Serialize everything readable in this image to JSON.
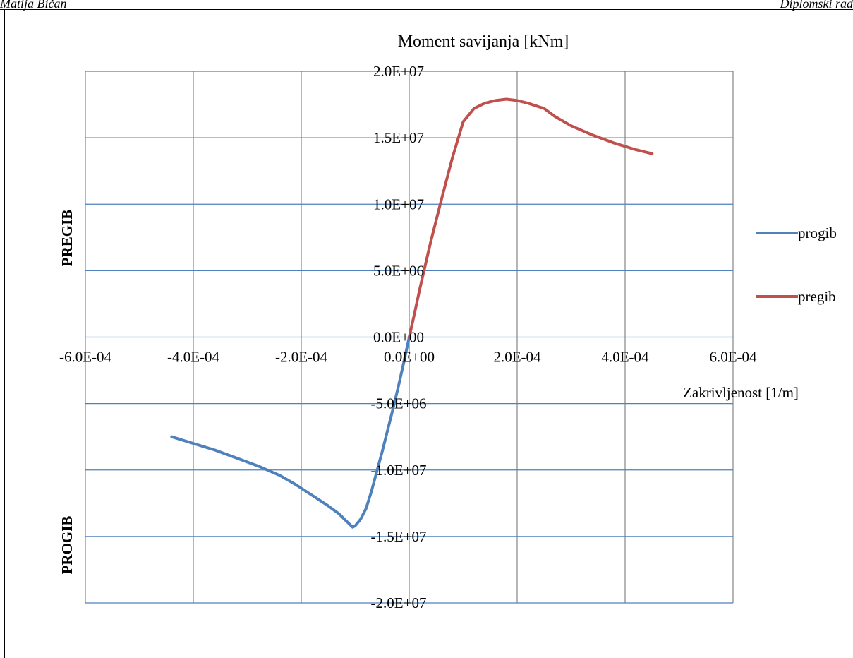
{
  "header": {
    "left": "Matija Bičan",
    "right": "Diplomski rad"
  },
  "chart_data": {
    "type": "line",
    "title": "Moment savijanja [kNm]",
    "xlabel": "Zakrivljenost [1/m]",
    "ylabel_top": "PREGIB",
    "ylabel_bottom": "PROGIB",
    "xlim": [
      -0.0006,
      0.0006
    ],
    "ylim": [
      -20000000,
      20000000
    ],
    "x_ticks": [
      -0.0006,
      -0.0004,
      -0.0002,
      0,
      0.0002,
      0.0004,
      0.0006
    ],
    "x_tick_labels": [
      "-6.0E-04",
      "-4.0E-04",
      "-2.0E-04",
      "0.0E+00",
      "2.0E-04",
      "4.0E-04",
      "6.0E-04"
    ],
    "y_ticks": [
      20000000,
      15000000,
      10000000,
      5000000,
      0,
      -5000000,
      -10000000,
      -15000000,
      -20000000
    ],
    "y_tick_labels": [
      "2.0E+07",
      "1.5E+07",
      "1.0E+07",
      "5.0E+06",
      "0.0E+00",
      "-5.0E+06",
      "-1.0E+07",
      "-1.5E+07",
      "-2.0E+07"
    ],
    "grid": true,
    "legend_position": "right",
    "series": [
      {
        "name": "progib",
        "color": "#4f81bd",
        "x": [
          0,
          -1e-05,
          -2e-05,
          -3e-05,
          -4e-05,
          -5e-05,
          -6e-05,
          -7e-05,
          -8e-05,
          -9e-05,
          -0.0001,
          -0.000105,
          -0.00011,
          -0.00012,
          -0.00013,
          -0.00015,
          -0.00018,
          -0.00021,
          -0.00024,
          -0.00028,
          -0.00032,
          -0.00036,
          -0.0004,
          -0.00044
        ],
        "y": [
          0,
          -1900000,
          -3700000,
          -5400000,
          -7000000,
          -8600000,
          -10100000,
          -11600000,
          -12900000,
          -13700000,
          -14200000,
          -14300000,
          -14100000,
          -13700000,
          -13300000,
          -12700000,
          -11900000,
          -11100000,
          -10400000,
          -9700000,
          -9100000,
          -8500000,
          -8000000,
          -7500000
        ]
      },
      {
        "name": "pregib",
        "color": "#c0504d",
        "x": [
          0,
          1e-05,
          2e-05,
          4e-05,
          6e-05,
          8e-05,
          0.0001,
          0.00012,
          0.00014,
          0.00016,
          0.00018,
          0.0002,
          0.00022,
          0.00025,
          0.00027,
          0.0003,
          0.00034,
          0.00038,
          0.00042,
          0.00045
        ],
        "y": [
          0,
          1800000,
          3700000,
          7200000,
          10400000,
          13500000,
          16200000,
          17200000,
          17600000,
          17800000,
          17900000,
          17800000,
          17600000,
          17200000,
          16600000,
          15900000,
          15200000,
          14600000,
          14100000,
          13800000
        ]
      }
    ]
  }
}
